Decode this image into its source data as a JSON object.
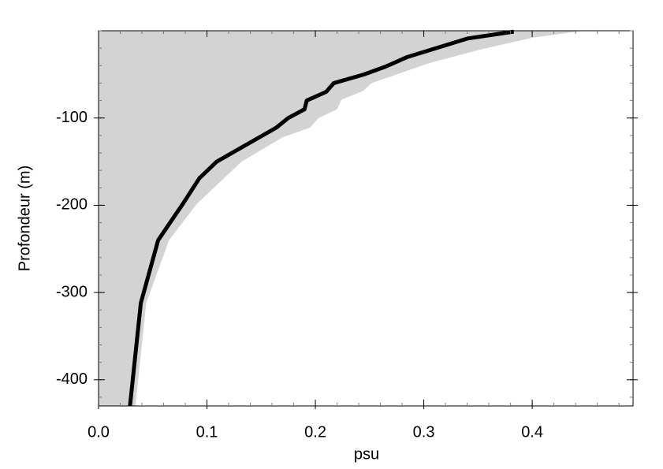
{
  "chart_data": {
    "type": "line",
    "xlabel": "psu",
    "ylabel": "Profondeur (m)",
    "xlim": [
      0,
      0.493
    ],
    "ylim": [
      -430,
      0
    ],
    "xticks": [
      {
        "value": 0,
        "label": "0.0"
      },
      0.1,
      0.2,
      0.3,
      0.4
    ],
    "yticks": [
      -100,
      -200,
      -300,
      -400
    ],
    "line": {
      "color": "#000000",
      "x": [
        0.383,
        0.34,
        0.285,
        0.265,
        0.245,
        0.217,
        0.21,
        0.192,
        0.19,
        0.175,
        0.164,
        0.109,
        0.093,
        0.078,
        0.055,
        0.039,
        0.029
      ],
      "y": [
        -1,
        -9,
        -30,
        -41,
        -50,
        -60,
        -70,
        -80,
        -90,
        -100,
        -111,
        -150,
        -169,
        -198,
        -240,
        -312,
        -430
      ]
    },
    "band": {
      "color": "#d3d3d3",
      "x": [
        0.447,
        0.4,
        0.354,
        0.305,
        0.252,
        0.244,
        0.224,
        0.22,
        0.203,
        0.195,
        0.17,
        0.132,
        0.091,
        0.065,
        0.044,
        0.034
      ],
      "y": [
        0,
        -8,
        -21,
        -37,
        -60,
        -69,
        -79,
        -90,
        -100,
        -111,
        -122,
        -150,
        -198,
        -240,
        -312,
        -430
      ]
    }
  }
}
